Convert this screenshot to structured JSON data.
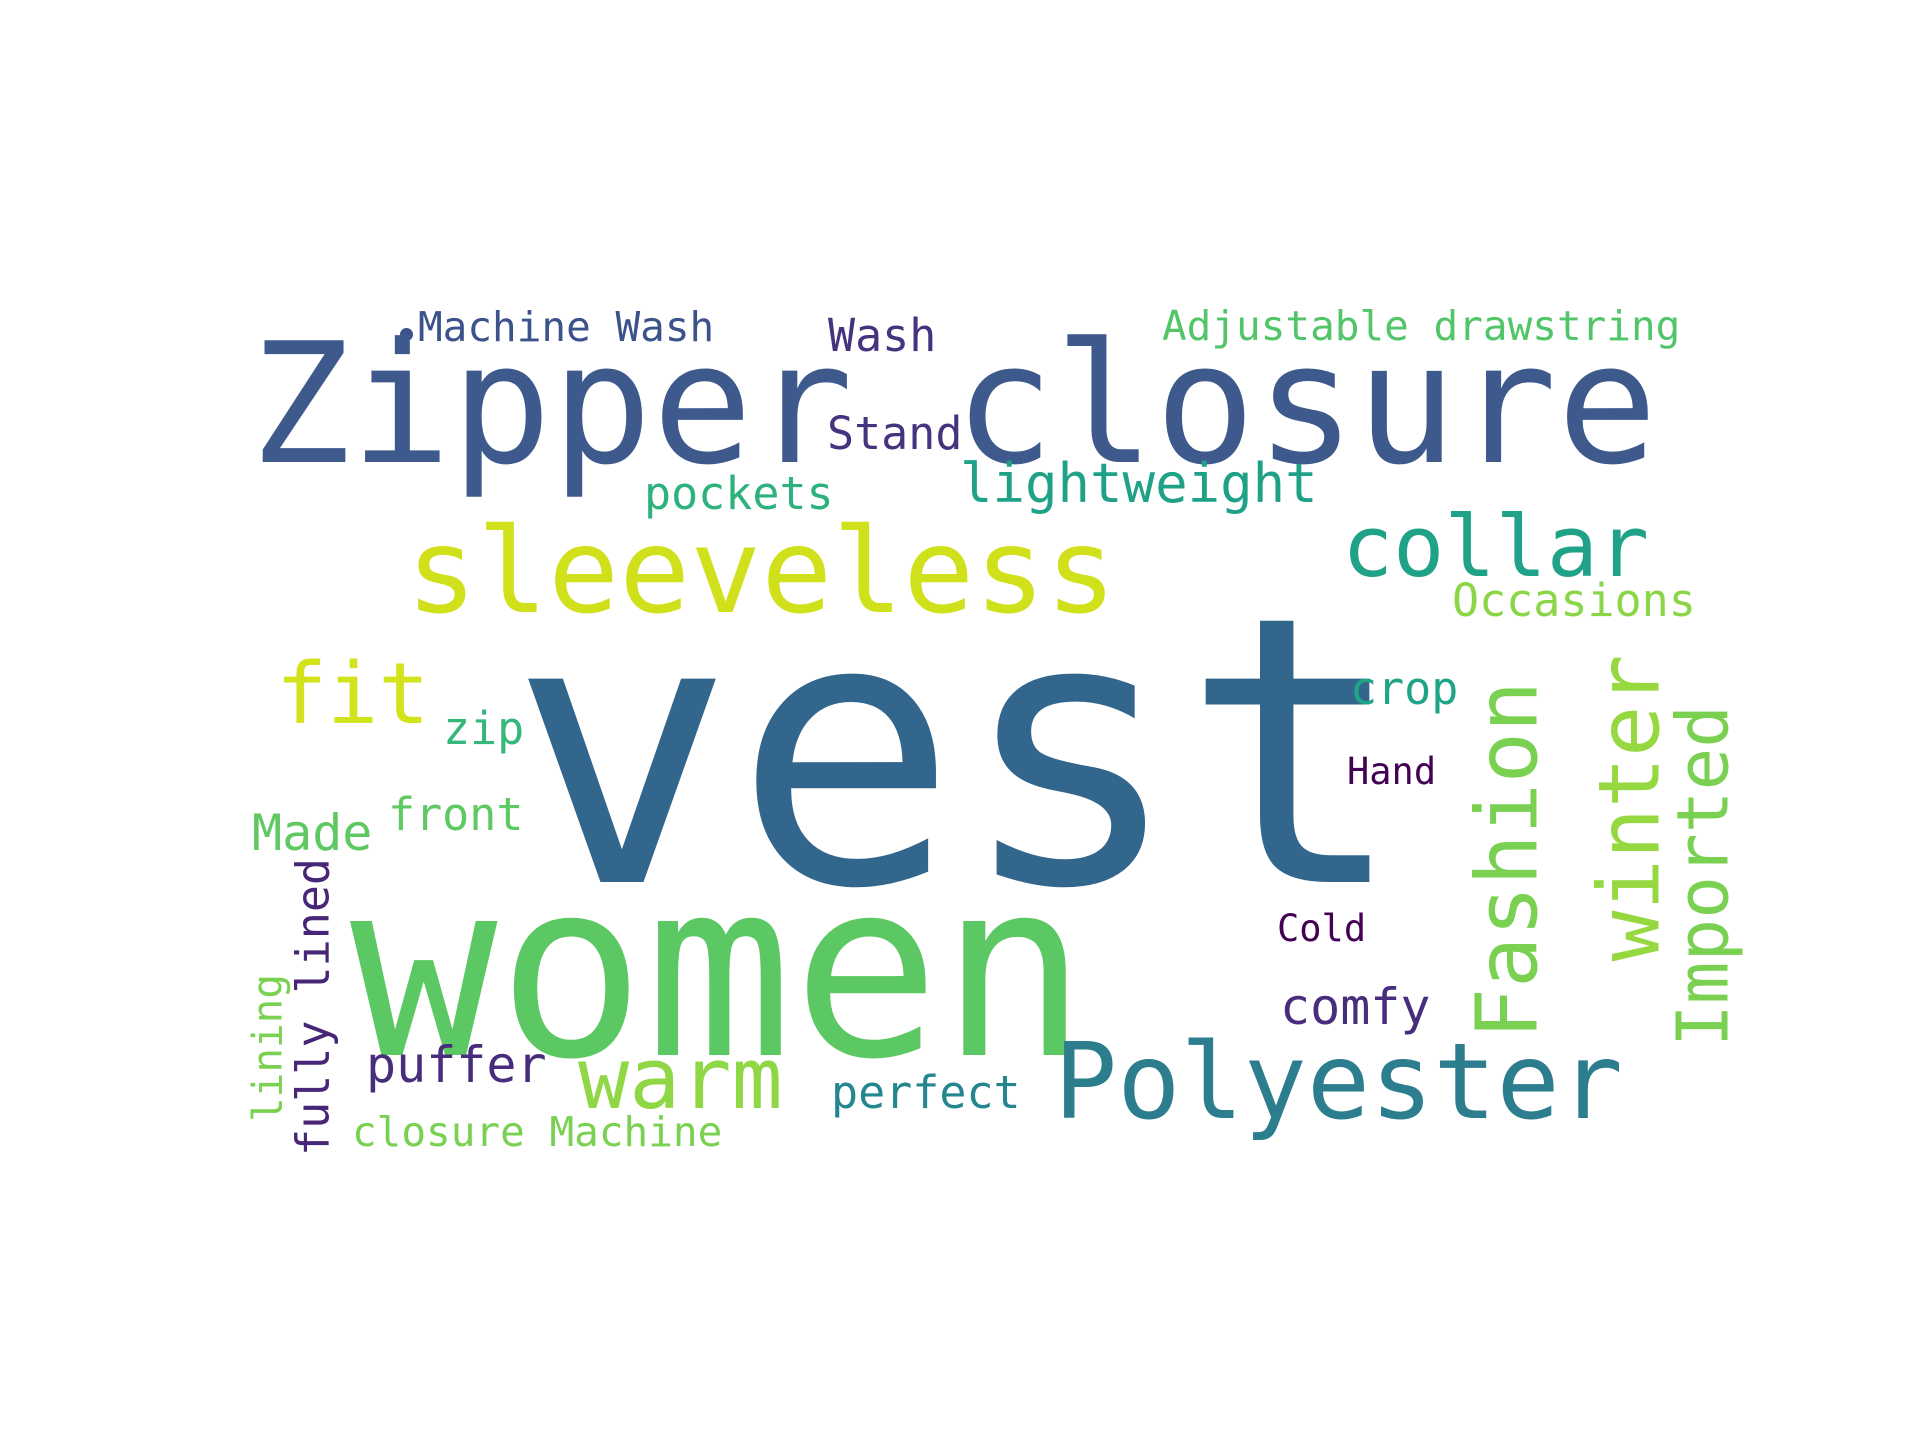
{
  "wordcloud": {
    "words": [
      {
        "text": "vest",
        "color": "#33668c"
      },
      {
        "text": "women",
        "color": "#5cc863"
      },
      {
        "text": "Zipper closure",
        "color": "#3e5a8c"
      },
      {
        "text": "sleeveless",
        "color": "#d0e11c"
      },
      {
        "text": "Polyester",
        "color": "#2c7e8e"
      },
      {
        "text": "collar",
        "color": "#1fa287"
      },
      {
        "text": "warm",
        "color": "#8fd744"
      },
      {
        "text": "fit",
        "color": "#d2e21b"
      },
      {
        "text": "lightweight",
        "color": "#1fa187"
      },
      {
        "text": "Machine Wash",
        "color": "#3b528b"
      },
      {
        "text": "Wash",
        "color": "#46337e"
      },
      {
        "text": "Stand",
        "color": "#46337e"
      },
      {
        "text": "Adjustable drawstring",
        "color": "#52c569"
      },
      {
        "text": "pockets",
        "color": "#2db27d"
      },
      {
        "text": "Occasions",
        "color": "#8bd646"
      },
      {
        "text": "crop",
        "color": "#20a486"
      },
      {
        "text": "zip",
        "color": "#35b779"
      },
      {
        "text": "Hand",
        "color": "#440154"
      },
      {
        "text": "front",
        "color": "#5ec962"
      },
      {
        "text": "Made",
        "color": "#5ec962"
      },
      {
        "text": "Cold",
        "color": "#440154"
      },
      {
        "text": "comfy",
        "color": "#472d7b"
      },
      {
        "text": "puffer",
        "color": "#472d7b"
      },
      {
        "text": "perfect",
        "color": "#24868e"
      },
      {
        "text": "closure Machine",
        "color": "#7ad151"
      },
      {
        "text": "Fashion",
        "color": "#7ad151"
      },
      {
        "text": "winter",
        "color": "#95d840"
      },
      {
        "text": "Imported",
        "color": "#7ad151"
      },
      {
        "text": "fully lined",
        "color": "#482677"
      },
      {
        "text": "lining",
        "color": "#7ad151"
      }
    ]
  }
}
